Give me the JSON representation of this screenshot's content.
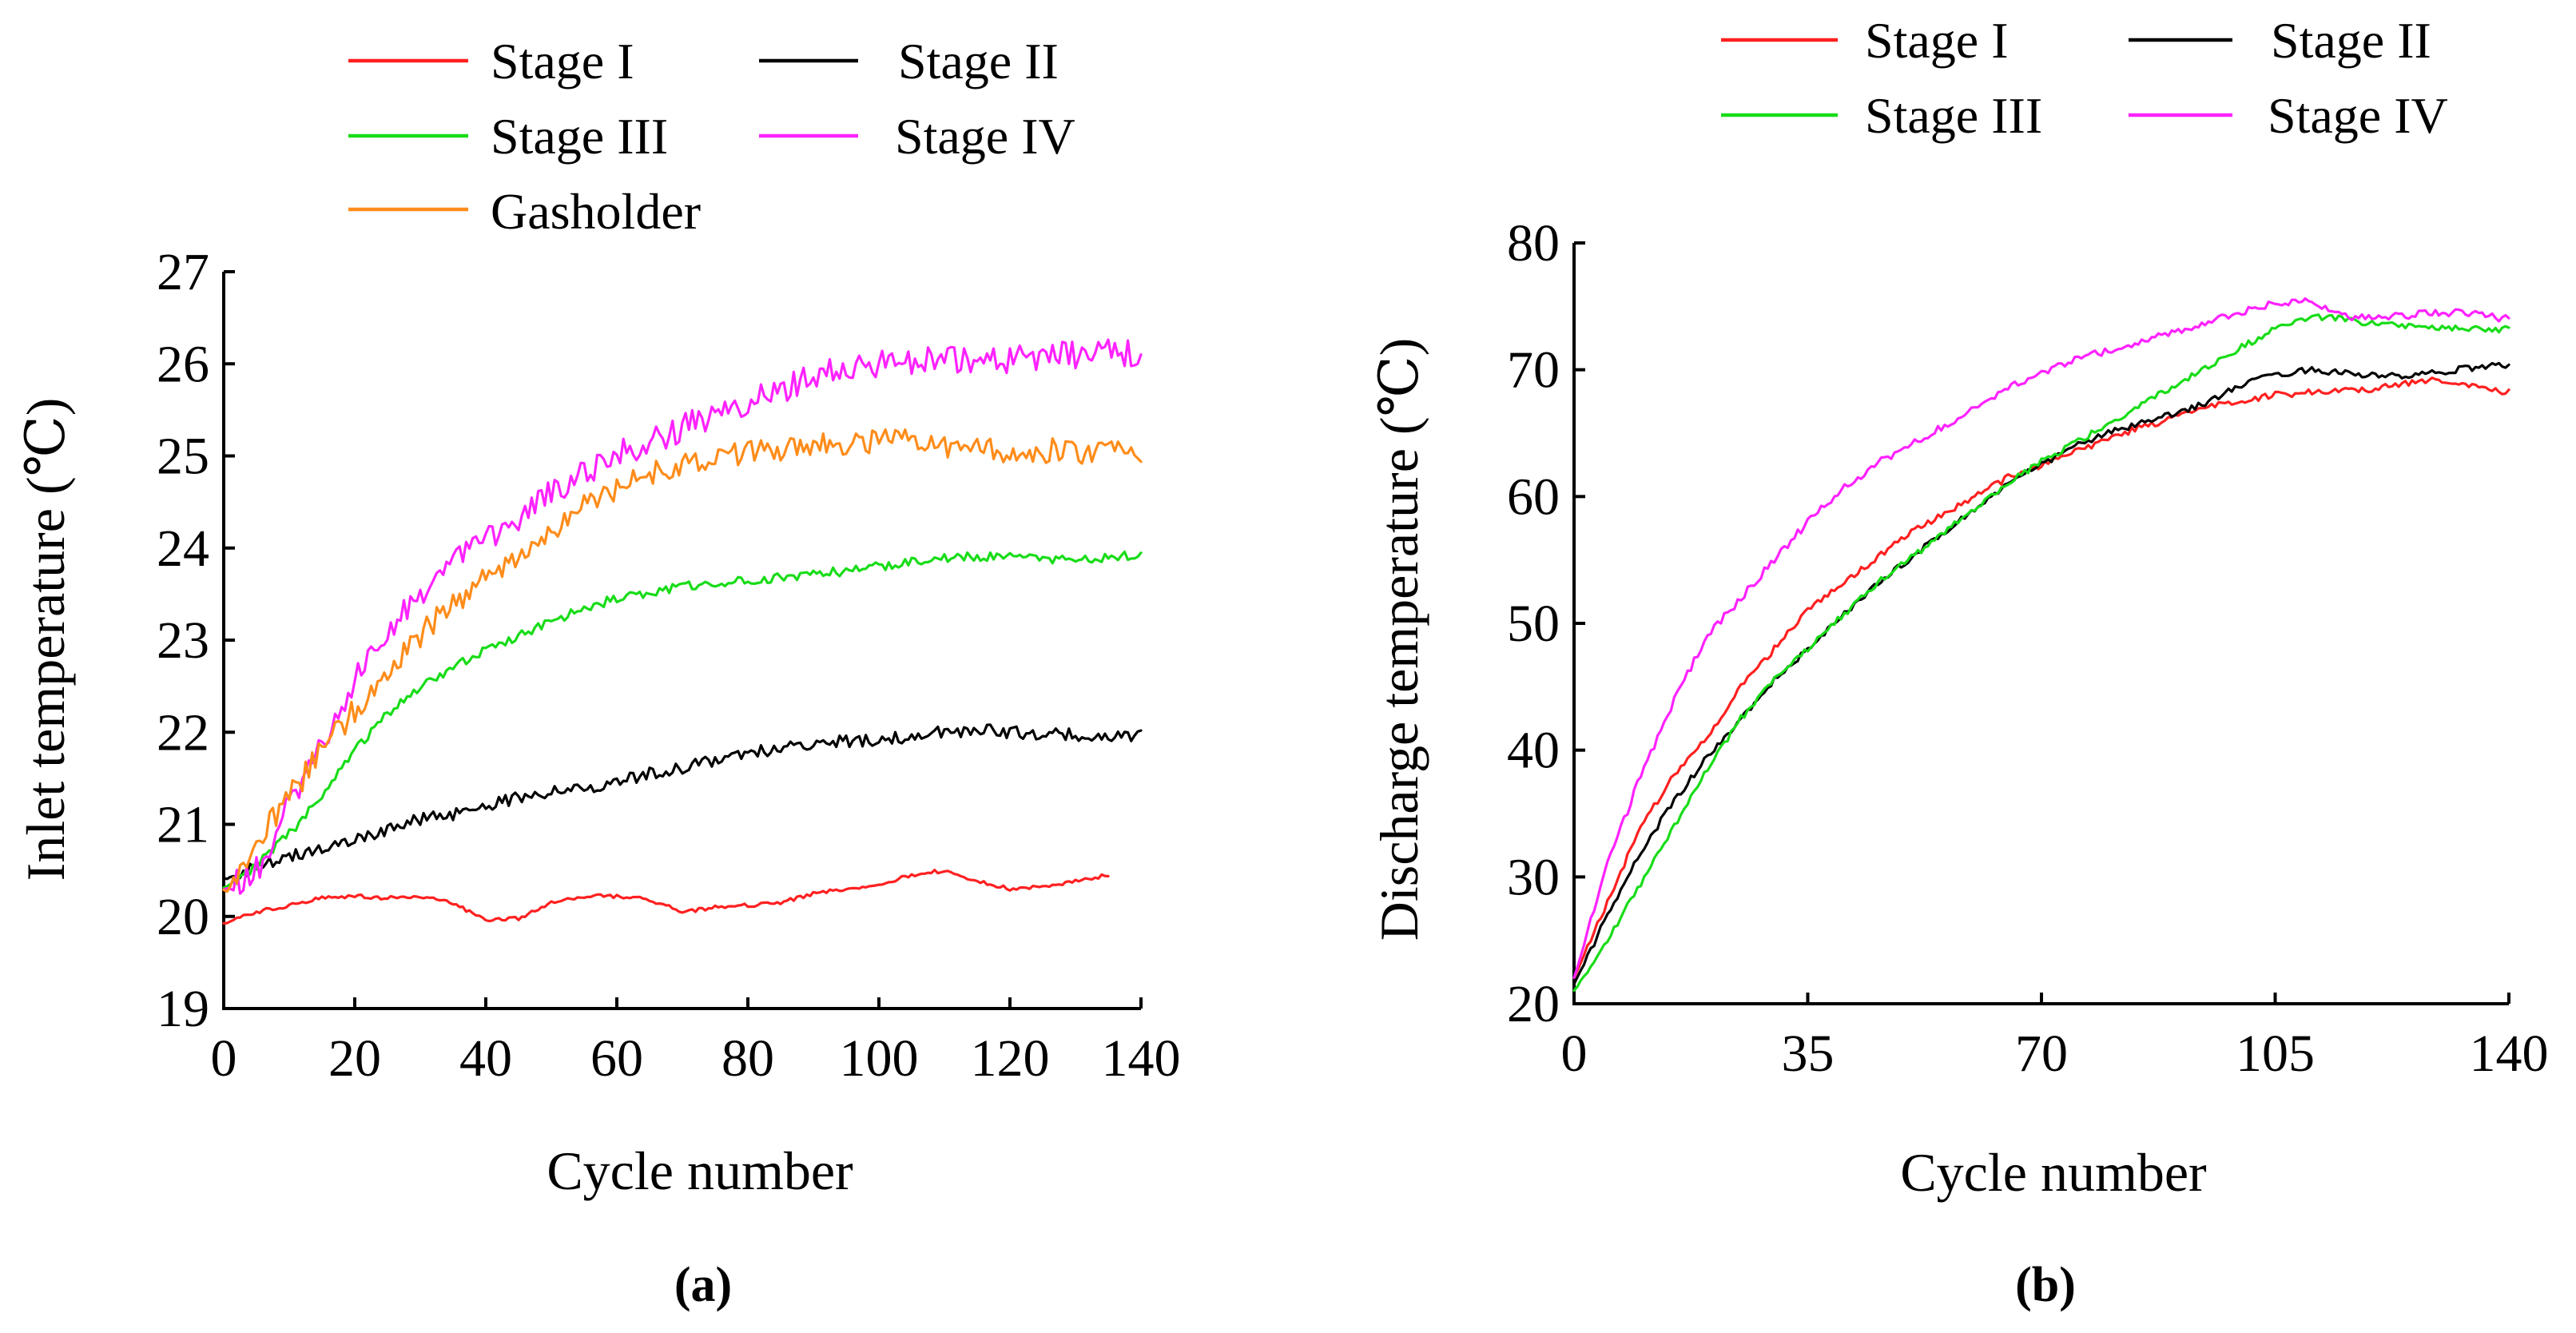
{
  "chart_data": [
    {
      "type": "line",
      "panel_label": "(a)",
      "xlabel": "Cycle number",
      "ylabel": "Inlet temperature (℃)",
      "xlim": [
        0,
        140
      ],
      "ylim": [
        19,
        27
      ],
      "xticks": [
        "0",
        "20",
        "40",
        "60",
        "80",
        "100",
        "120",
        "140"
      ],
      "yticks": [
        "19",
        "20",
        "21",
        "22",
        "23",
        "24",
        "25",
        "26",
        "27"
      ],
      "legend": "top, two columns",
      "grid": false,
      "series": [
        {
          "name": "Stage I",
          "color": "#ff2020",
          "noise": 0.02,
          "points": [
            [
              0,
              19.92
            ],
            [
              5,
              20.05
            ],
            [
              10,
              20.12
            ],
            [
              15,
              20.2
            ],
            [
              20,
              20.22
            ],
            [
              25,
              20.2
            ],
            [
              30,
              20.22
            ],
            [
              35,
              20.15
            ],
            [
              40,
              19.95
            ],
            [
              45,
              19.98
            ],
            [
              50,
              20.15
            ],
            [
              55,
              20.22
            ],
            [
              60,
              20.22
            ],
            [
              65,
              20.18
            ],
            [
              70,
              20.05
            ],
            [
              75,
              20.1
            ],
            [
              80,
              20.12
            ],
            [
              85,
              20.15
            ],
            [
              90,
              20.25
            ],
            [
              95,
              20.3
            ],
            [
              100,
              20.35
            ],
            [
              105,
              20.45
            ],
            [
              110,
              20.5
            ],
            [
              115,
              20.38
            ],
            [
              120,
              20.3
            ],
            [
              125,
              20.32
            ],
            [
              130,
              20.38
            ],
            [
              135,
              20.45
            ]
          ]
        },
        {
          "name": "Stage II",
          "color": "#000000",
          "noise": 0.07,
          "points": [
            [
              0,
              20.4
            ],
            [
              5,
              20.55
            ],
            [
              10,
              20.65
            ],
            [
              15,
              20.75
            ],
            [
              20,
              20.85
            ],
            [
              25,
              20.95
            ],
            [
              30,
              21.05
            ],
            [
              35,
              21.1
            ],
            [
              40,
              21.2
            ],
            [
              45,
              21.3
            ],
            [
              50,
              21.35
            ],
            [
              55,
              21.4
            ],
            [
              60,
              21.45
            ],
            [
              65,
              21.55
            ],
            [
              70,
              21.62
            ],
            [
              75,
              21.7
            ],
            [
              80,
              21.78
            ],
            [
              85,
              21.82
            ],
            [
              90,
              21.88
            ],
            [
              95,
              21.9
            ],
            [
              100,
              21.92
            ],
            [
              105,
              21.95
            ],
            [
              110,
              22.0
            ],
            [
              115,
              22.02
            ],
            [
              120,
              22.0
            ],
            [
              125,
              21.98
            ],
            [
              130,
              21.97
            ],
            [
              135,
              21.97
            ],
            [
              140,
              21.97
            ]
          ]
        },
        {
          "name": "Stage III",
          "color": "#18dc18",
          "noise": 0.05,
          "points": [
            [
              0,
              20.3
            ],
            [
              5,
              20.55
            ],
            [
              10,
              20.9
            ],
            [
              15,
              21.3
            ],
            [
              20,
              21.8
            ],
            [
              25,
              22.2
            ],
            [
              30,
              22.5
            ],
            [
              35,
              22.7
            ],
            [
              40,
              22.9
            ],
            [
              45,
              23.05
            ],
            [
              50,
              23.2
            ],
            [
              55,
              23.35
            ],
            [
              60,
              23.45
            ],
            [
              65,
              23.52
            ],
            [
              70,
              23.58
            ],
            [
              75,
              23.62
            ],
            [
              80,
              23.65
            ],
            [
              85,
              23.68
            ],
            [
              90,
              23.72
            ],
            [
              95,
              23.75
            ],
            [
              100,
              23.8
            ],
            [
              105,
              23.85
            ],
            [
              110,
              23.9
            ],
            [
              115,
              23.9
            ],
            [
              120,
              23.9
            ],
            [
              125,
              23.88
            ],
            [
              130,
              23.88
            ],
            [
              135,
              23.9
            ],
            [
              140,
              23.92
            ]
          ]
        },
        {
          "name": "Stage IV",
          "color": "#ff22ff",
          "noise": 0.16,
          "points": [
            [
              0,
              20.25
            ],
            [
              5,
              20.5
            ],
            [
              10,
              21.2
            ],
            [
              15,
              21.9
            ],
            [
              20,
              22.6
            ],
            [
              25,
              23.1
            ],
            [
              30,
              23.5
            ],
            [
              35,
              23.8
            ],
            [
              40,
              24.1
            ],
            [
              45,
              24.35
            ],
            [
              50,
              24.6
            ],
            [
              55,
              24.8
            ],
            [
              60,
              25.0
            ],
            [
              65,
              25.15
            ],
            [
              70,
              25.3
            ],
            [
              75,
              25.45
            ],
            [
              80,
              25.6
            ],
            [
              85,
              25.72
            ],
            [
              90,
              25.85
            ],
            [
              95,
              25.95
            ],
            [
              100,
              26.0
            ],
            [
              105,
              26.02
            ],
            [
              110,
              26.05
            ],
            [
              115,
              26.05
            ],
            [
              120,
              26.05
            ],
            [
              125,
              26.1
            ],
            [
              130,
              26.1
            ],
            [
              135,
              26.12
            ],
            [
              140,
              26.1
            ]
          ]
        },
        {
          "name": "Gasholder",
          "color": "#ff8c1a",
          "noise": 0.14,
          "points": [
            [
              0,
              20.25
            ],
            [
              5,
              20.8
            ],
            [
              10,
              21.3
            ],
            [
              15,
              21.8
            ],
            [
              20,
              22.25
            ],
            [
              25,
              22.65
            ],
            [
              30,
              23.05
            ],
            [
              35,
              23.4
            ],
            [
              40,
              23.7
            ],
            [
              45,
              23.95
            ],
            [
              50,
              24.2
            ],
            [
              55,
              24.45
            ],
            [
              60,
              24.65
            ],
            [
              65,
              24.8
            ],
            [
              70,
              24.9
            ],
            [
              75,
              25.0
            ],
            [
              80,
              25.05
            ],
            [
              85,
              25.08
            ],
            [
              90,
              25.1
            ],
            [
              95,
              25.12
            ],
            [
              100,
              25.15
            ],
            [
              105,
              25.15
            ],
            [
              110,
              25.12
            ],
            [
              115,
              25.1
            ],
            [
              120,
              25.05
            ],
            [
              125,
              25.05
            ],
            [
              130,
              25.05
            ],
            [
              135,
              25.05
            ],
            [
              140,
              25.0
            ]
          ]
        }
      ]
    },
    {
      "type": "line",
      "panel_label": "(b)",
      "xlabel": "Cycle number",
      "ylabel": "Discharge temperature (℃)",
      "xlim": [
        0,
        140
      ],
      "ylim": [
        20,
        80
      ],
      "xticks": [
        "0",
        "35",
        "70",
        "105",
        "140"
      ],
      "yticks": [
        "20",
        "30",
        "40",
        "50",
        "60",
        "70",
        "80"
      ],
      "legend": "top, two columns",
      "grid": false,
      "series": [
        {
          "name": "Stage I",
          "color": "#ff2020",
          "noise": 0.25,
          "points": [
            [
              0,
              22
            ],
            [
              5,
              28
            ],
            [
              10,
              34
            ],
            [
              15,
              38
            ],
            [
              20,
              41
            ],
            [
              25,
              45
            ],
            [
              30,
              48
            ],
            [
              35,
              51
            ],
            [
              40,
              53
            ],
            [
              45,
              55
            ],
            [
              50,
              57
            ],
            [
              55,
              58.5
            ],
            [
              60,
              60
            ],
            [
              65,
              61.5
            ],
            [
              70,
              62.5
            ],
            [
              75,
              63.5
            ],
            [
              80,
              64.5
            ],
            [
              85,
              65.5
            ],
            [
              90,
              66.2
            ],
            [
              95,
              67
            ],
            [
              100,
              67.6
            ],
            [
              105,
              68
            ],
            [
              110,
              68.2
            ],
            [
              115,
              68.4
            ],
            [
              120,
              68.5
            ],
            [
              125,
              69
            ],
            [
              130,
              69.2
            ],
            [
              135,
              68.8
            ],
            [
              140,
              68.2
            ]
          ]
        },
        {
          "name": "Stage II",
          "color": "#000000",
          "noise": 0.25,
          "points": [
            [
              0,
              21.5
            ],
            [
              5,
              27
            ],
            [
              10,
              32
            ],
            [
              15,
              36
            ],
            [
              20,
              39.5
            ],
            [
              25,
              42.5
            ],
            [
              30,
              45.5
            ],
            [
              35,
              48
            ],
            [
              40,
              50.5
            ],
            [
              45,
              53
            ],
            [
              50,
              55
            ],
            [
              55,
              57
            ],
            [
              60,
              59
            ],
            [
              65,
              61
            ],
            [
              70,
              62.5
            ],
            [
              75,
              64
            ],
            [
              80,
              65
            ],
            [
              85,
              65.8
            ],
            [
              90,
              66.5
            ],
            [
              95,
              67.5
            ],
            [
              100,
              68.8
            ],
            [
              105,
              69.6
            ],
            [
              110,
              70
            ],
            [
              115,
              69.8
            ],
            [
              120,
              69.5
            ],
            [
              125,
              69.5
            ],
            [
              130,
              69.8
            ],
            [
              135,
              70.2
            ],
            [
              140,
              70.4
            ]
          ]
        },
        {
          "name": "Stage III",
          "color": "#18dc18",
          "noise": 0.25,
          "points": [
            [
              0,
              21
            ],
            [
              5,
              25
            ],
            [
              10,
              29.5
            ],
            [
              15,
              34
            ],
            [
              20,
              38.5
            ],
            [
              25,
              42.5
            ],
            [
              30,
              45.5
            ],
            [
              35,
              48
            ],
            [
              40,
              50.5
            ],
            [
              45,
              53
            ],
            [
              50,
              55
            ],
            [
              55,
              57
            ],
            [
              60,
              59
            ],
            [
              65,
              61
            ],
            [
              70,
              62.8
            ],
            [
              75,
              64.2
            ],
            [
              80,
              65.8
            ],
            [
              85,
              67.2
            ],
            [
              90,
              68.8
            ],
            [
              95,
              70.3
            ],
            [
              100,
              71.8
            ],
            [
              105,
              73.2
            ],
            [
              110,
              74.2
            ],
            [
              115,
              74
            ],
            [
              120,
              73.6
            ],
            [
              125,
              73.4
            ],
            [
              130,
              73.3
            ],
            [
              135,
              73.2
            ],
            [
              140,
              73.2
            ]
          ]
        },
        {
          "name": "Stage IV",
          "color": "#ff22ff",
          "noise": 0.3,
          "points": [
            [
              0,
              22
            ],
            [
              5,
              31
            ],
            [
              10,
              38
            ],
            [
              15,
              44
            ],
            [
              20,
              49
            ],
            [
              25,
              52
            ],
            [
              30,
              55
            ],
            [
              35,
              58
            ],
            [
              40,
              60.5
            ],
            [
              45,
              62.5
            ],
            [
              50,
              64
            ],
            [
              55,
              65.5
            ],
            [
              60,
              67
            ],
            [
              65,
              68.5
            ],
            [
              70,
              69.8
            ],
            [
              75,
              70.8
            ],
            [
              80,
              71.5
            ],
            [
              85,
              72.2
            ],
            [
              90,
              73
            ],
            [
              95,
              73.8
            ],
            [
              100,
              74.6
            ],
            [
              105,
              75.3
            ],
            [
              110,
              75.5
            ],
            [
              115,
              74.2
            ],
            [
              120,
              74
            ],
            [
              125,
              74.3
            ],
            [
              130,
              74.5
            ],
            [
              135,
              74.4
            ],
            [
              140,
              74
            ]
          ]
        }
      ]
    }
  ]
}
